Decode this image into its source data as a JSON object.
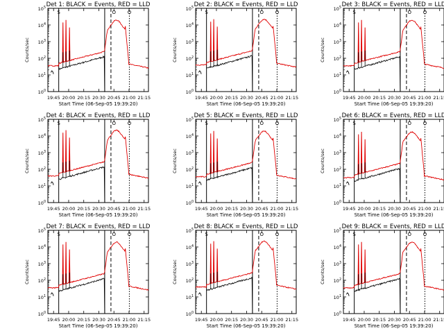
{
  "colors": {
    "events": "#000000",
    "lld": "#e00000",
    "background": "#ffffff"
  },
  "chart_data": [
    {
      "type": "line",
      "title": "Det 1: BLACK = Events, RED = LLD",
      "ylabel": "Counts/sec",
      "xlabel": "Start Time (06-Sep-05 19:39:20)",
      "x_tick_labels": [
        "19:45",
        "20:00",
        "20:15",
        "20:30",
        "20:45",
        "21:00",
        "21:15"
      ],
      "y_tick_labels": [
        "10^0",
        "10^1",
        "10^2",
        "10^3",
        "10^4",
        "10^5"
      ],
      "y_scale": "log",
      "ylim": [
        1,
        100000
      ],
      "xlim_minutes": [
        0,
        100
      ],
      "annotation_labels": [
        "S",
        "O",
        "O"
      ],
      "solid_marks_min": [
        10.8,
        56.5
      ],
      "dashed_marks_min": [
        62.7
      ],
      "dotted_marks_min": [
        81
      ],
      "series": [
        {
          "name": "Events",
          "color": "black"
        },
        {
          "name": "LLD",
          "color": "red"
        }
      ]
    },
    {
      "type": "line",
      "title": "Det 2: BLACK = Events, RED = LLD",
      "ylabel": "Counts/sec",
      "xlabel": "Start Time (06-Sep-05 19:39:20)",
      "x_tick_labels": [
        "19:45",
        "20:00",
        "20:15",
        "20:30",
        "20:45",
        "21:00",
        "21:15"
      ],
      "y_tick_labels": [
        "10^0",
        "10^1",
        "10^2",
        "10^3",
        "10^4",
        "10^5"
      ],
      "y_scale": "log",
      "ylim": [
        1,
        100000
      ],
      "xlim_minutes": [
        0,
        100
      ],
      "annotation_labels": [
        "S",
        "O",
        "O"
      ],
      "solid_marks_min": [
        10.8,
        56.5
      ],
      "dashed_marks_min": [
        62.7
      ],
      "dotted_marks_min": [
        81
      ],
      "series": [
        {
          "name": "Events",
          "color": "black"
        },
        {
          "name": "LLD",
          "color": "red"
        }
      ]
    },
    {
      "type": "line",
      "title": "Det 3: BLACK = Events, RED = LLD",
      "ylabel": "Counts/sec",
      "xlabel": "Start Time (06-Sep-05 19:39:20)",
      "x_tick_labels": [
        "19:45",
        "20:00",
        "20:15",
        "20:30",
        "20:45",
        "21:00",
        "21:15"
      ],
      "y_tick_labels": [
        "10^0",
        "10^1",
        "10^2",
        "10^3",
        "10^4",
        "10^5"
      ],
      "y_scale": "log",
      "ylim": [
        1,
        100000
      ],
      "xlim_minutes": [
        0,
        100
      ],
      "annotation_labels": [
        "S",
        "O",
        "O"
      ],
      "solid_marks_min": [
        10.8,
        56.5
      ],
      "dashed_marks_min": [
        62.7
      ],
      "dotted_marks_min": [
        81
      ],
      "series": [
        {
          "name": "Events",
          "color": "black"
        },
        {
          "name": "LLD",
          "color": "red"
        }
      ]
    },
    {
      "type": "line",
      "title": "Det 4: BLACK = Events, RED = LLD",
      "ylabel": "Counts/sec",
      "xlabel": "Start Time (06-Sep-05 19:39:20)",
      "x_tick_labels": [
        "19:45",
        "20:00",
        "20:15",
        "20:30",
        "20:45",
        "21:00",
        "21:15"
      ],
      "y_tick_labels": [
        "10^0",
        "10^1",
        "10^2",
        "10^3",
        "10^4",
        "10^5"
      ],
      "y_scale": "log",
      "ylim": [
        1,
        100000
      ],
      "xlim_minutes": [
        0,
        100
      ],
      "annotation_labels": [
        "S",
        "O",
        "O"
      ],
      "solid_marks_min": [
        10.8,
        56.5
      ],
      "dashed_marks_min": [
        62.7
      ],
      "dotted_marks_min": [
        81
      ],
      "series": [
        {
          "name": "Events",
          "color": "black"
        },
        {
          "name": "LLD",
          "color": "red"
        }
      ]
    },
    {
      "type": "line",
      "title": "Det 5: BLACK = Events, RED = LLD",
      "ylabel": "Counts/sec",
      "xlabel": "Start Time (06-Sep-05 19:39:20)",
      "x_tick_labels": [
        "19:45",
        "20:00",
        "20:15",
        "20:30",
        "20:45",
        "21:00",
        "21:15"
      ],
      "y_tick_labels": [
        "10^0",
        "10^1",
        "10^2",
        "10^3",
        "10^4",
        "10^5"
      ],
      "y_scale": "log",
      "ylim": [
        1,
        100000
      ],
      "xlim_minutes": [
        0,
        100
      ],
      "annotation_labels": [
        "S",
        "O",
        "O"
      ],
      "solid_marks_min": [
        10.8,
        56.5
      ],
      "dashed_marks_min": [
        62.7
      ],
      "dotted_marks_min": [
        81
      ],
      "series": [
        {
          "name": "Events",
          "color": "black"
        },
        {
          "name": "LLD",
          "color": "red"
        }
      ]
    },
    {
      "type": "line",
      "title": "Det 6: BLACK = Events, RED = LLD",
      "ylabel": "Counts/sec",
      "xlabel": "Start Time (06-Sep-05 19:39:20)",
      "x_tick_labels": [
        "19:45",
        "20:00",
        "20:15",
        "20:30",
        "20:45",
        "21:00",
        "21:15"
      ],
      "y_tick_labels": [
        "10^0",
        "10^1",
        "10^2",
        "10^3",
        "10^4",
        "10^5"
      ],
      "y_scale": "log",
      "ylim": [
        1,
        100000
      ],
      "xlim_minutes": [
        0,
        100
      ],
      "annotation_labels": [
        "S",
        "O",
        "O"
      ],
      "solid_marks_min": [
        10.8,
        56.5
      ],
      "dashed_marks_min": [
        62.7
      ],
      "dotted_marks_min": [
        81
      ],
      "series": [
        {
          "name": "Events",
          "color": "black"
        },
        {
          "name": "LLD",
          "color": "red"
        }
      ]
    },
    {
      "type": "line",
      "title": "Det 7: BLACK = Events, RED = LLD",
      "ylabel": "Counts/sec",
      "xlabel": "Start Time (06-Sep-05 19:39:20)",
      "x_tick_labels": [
        "19:45",
        "20:00",
        "20:15",
        "20:30",
        "20:45",
        "21:00",
        "21:15"
      ],
      "y_tick_labels": [
        "10^0",
        "10^1",
        "10^2",
        "10^3",
        "10^4",
        "10^5"
      ],
      "y_scale": "log",
      "ylim": [
        1,
        100000
      ],
      "xlim_minutes": [
        0,
        100
      ],
      "annotation_labels": [
        "S",
        "O",
        "O"
      ],
      "solid_marks_min": [
        10.8,
        56.5
      ],
      "dashed_marks_min": [
        62.7
      ],
      "dotted_marks_min": [
        81
      ],
      "series": [
        {
          "name": "Events",
          "color": "black"
        },
        {
          "name": "LLD",
          "color": "red"
        }
      ]
    },
    {
      "type": "line",
      "title": "Det 8: BLACK = Events, RED = LLD",
      "ylabel": "Counts/sec",
      "xlabel": "Start Time (06-Sep-05 19:39:20)",
      "x_tick_labels": [
        "19:45",
        "20:00",
        "20:15",
        "20:30",
        "20:45",
        "21:00",
        "21:15"
      ],
      "y_tick_labels": [
        "10^0",
        "10^1",
        "10^2",
        "10^3",
        "10^4",
        "10^5"
      ],
      "y_scale": "log",
      "ylim": [
        1,
        100000
      ],
      "xlim_minutes": [
        0,
        100
      ],
      "annotation_labels": [
        "S",
        "O",
        "O"
      ],
      "solid_marks_min": [
        10.8,
        56.5
      ],
      "dashed_marks_min": [
        62.7
      ],
      "dotted_marks_min": [
        81
      ],
      "series": [
        {
          "name": "Events",
          "color": "black"
        },
        {
          "name": "LLD",
          "color": "red"
        }
      ]
    },
    {
      "type": "line",
      "title": "Det 9: BLACK = Events, RED = LLD",
      "ylabel": "Counts/sec",
      "xlabel": "Start Time (06-Sep-05 19:39:20)",
      "x_tick_labels": [
        "19:45",
        "20:00",
        "20:15",
        "20:30",
        "20:45",
        "21:00",
        "21:15"
      ],
      "y_tick_labels": [
        "10^0",
        "10^1",
        "10^2",
        "10^3",
        "10^4",
        "10^5"
      ],
      "y_scale": "log",
      "ylim": [
        1,
        100000
      ],
      "xlim_minutes": [
        0,
        100
      ],
      "annotation_labels": [
        "S",
        "O",
        "O"
      ],
      "solid_marks_min": [
        10.8,
        56.5
      ],
      "dashed_marks_min": [
        62.7
      ],
      "dotted_marks_min": [
        81
      ],
      "series": [
        {
          "name": "Events",
          "color": "black"
        },
        {
          "name": "LLD",
          "color": "red"
        }
      ]
    }
  ]
}
